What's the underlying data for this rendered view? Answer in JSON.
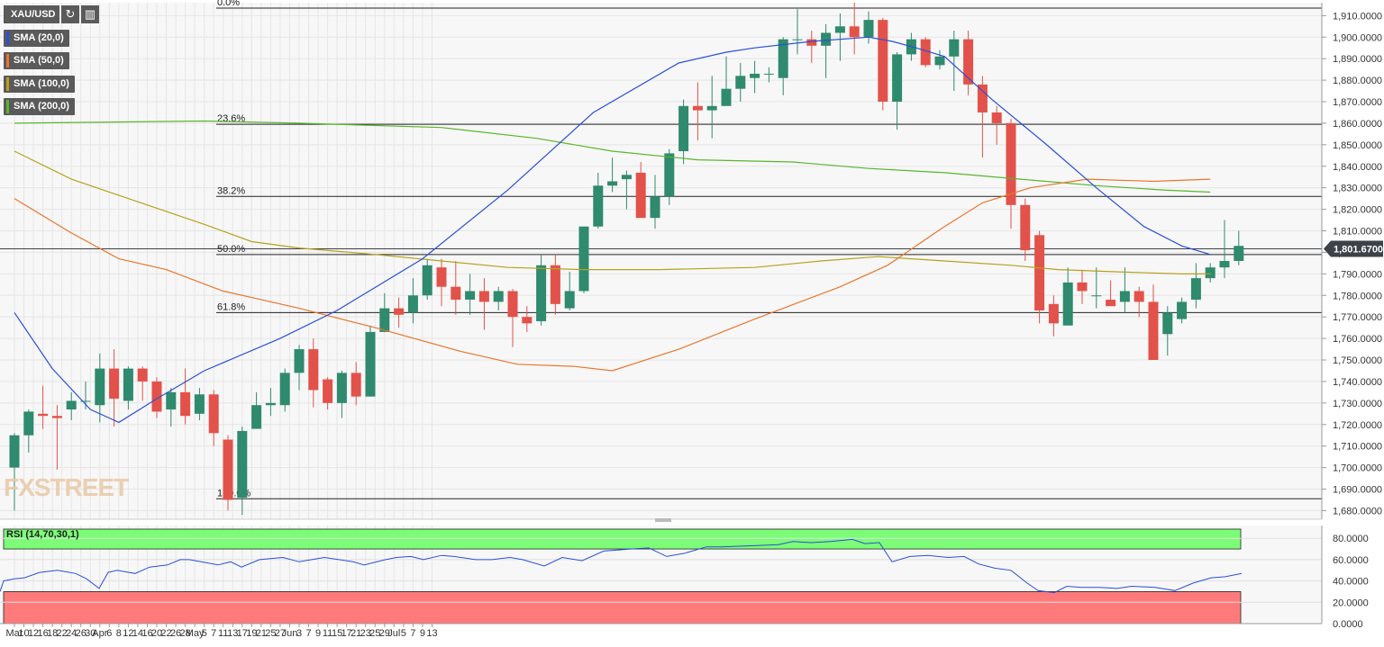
{
  "toolbar": {
    "symbol": "XAU/USD"
  },
  "chart_data": {
    "type": "candlestick",
    "symbol": "XAU/USD",
    "legend": [
      "SMA (20,0)",
      "SMA (50,0)",
      "SMA (100,0)",
      "SMA (200,0)"
    ],
    "ylim": [
      1676,
      1916
    ],
    "y_ticks": [
      "1,680.0000",
      "1,690.0000",
      "1,700.0000",
      "1,710.0000",
      "1,720.0000",
      "1,730.0000",
      "1,740.0000",
      "1,750.0000",
      "1,760.0000",
      "1,770.0000",
      "1,780.0000",
      "1,790.0000",
      "1,800.0000",
      "1,810.0000",
      "1,820.0000",
      "1,830.0000",
      "1,840.0000",
      "1,850.0000",
      "1,860.0000",
      "1,870.0000",
      "1,880.0000",
      "1,890.0000",
      "1,900.0000",
      "1,910.0000"
    ],
    "y_tick_values": [
      1680,
      1690,
      1700,
      1710,
      1720,
      1730,
      1740,
      1750,
      1760,
      1770,
      1780,
      1790,
      1800,
      1810,
      1820,
      1830,
      1840,
      1850,
      1860,
      1870,
      1880,
      1890,
      1900,
      1910
    ],
    "x_ticks": [
      "Mar",
      "10",
      "12",
      "16",
      "18",
      "22",
      "24",
      "26",
      "30",
      "Apr",
      "6",
      "8",
      "12",
      "14",
      "16",
      "20",
      "22",
      "26",
      "28",
      "May",
      "5",
      "7",
      "11",
      "13",
      "17",
      "19",
      "21",
      "25",
      "27",
      "Jun",
      "3",
      "7",
      "9",
      "11",
      "15",
      "17",
      "21",
      "23",
      "25",
      "29",
      "Jul",
      "5",
      "7",
      "9",
      "13"
    ],
    "x_tick_index": [
      0,
      2,
      4,
      6,
      8,
      10,
      12,
      14,
      16,
      18,
      20,
      22,
      24,
      26,
      28,
      30,
      32,
      34,
      36,
      38,
      40,
      42,
      44,
      46,
      48,
      50,
      52,
      54,
      56,
      58,
      60,
      62,
      64,
      66,
      68,
      70,
      72,
      74,
      76,
      78,
      80,
      82,
      84,
      86,
      88
    ],
    "last_price": {
      "label": "1,801.6700",
      "value": 1801.67
    },
    "fibonacci": [
      {
        "label": "0.0%",
        "value": 1913.5
      },
      {
        "label": "23.6%",
        "value": 1859.5
      },
      {
        "label": "38.2%",
        "value": 1826
      },
      {
        "label": "50.0%",
        "value": 1799
      },
      {
        "label": "61.8%",
        "value": 1772
      },
      {
        "label": "100.0%",
        "value": 1685.5
      }
    ],
    "candles": [
      [
        1700,
        1715,
        1680,
        1716
      ],
      [
        1715,
        1726,
        1707,
        1727
      ],
      [
        1725,
        1724,
        1718,
        1738
      ],
      [
        1724,
        1723,
        1699,
        1729
      ],
      [
        1727,
        1731,
        1722,
        1735
      ],
      [
        1731,
        1731,
        1727,
        1740
      ],
      [
        1729,
        1746,
        1721,
        1753
      ],
      [
        1746,
        1732,
        1719,
        1755
      ],
      [
        1731,
        1746,
        1727,
        1747
      ],
      [
        1746,
        1740,
        1731,
        1747
      ],
      [
        1740,
        1726,
        1723,
        1742
      ],
      [
        1727,
        1735,
        1719,
        1737
      ],
      [
        1735,
        1724,
        1720,
        1746
      ],
      [
        1725,
        1734,
        1722,
        1737
      ],
      [
        1734,
        1716,
        1710,
        1736
      ],
      [
        1713,
        1685,
        1680,
        1715
      ],
      [
        1686,
        1717,
        1678,
        1719
      ],
      [
        1718,
        1729,
        1718,
        1735
      ],
      [
        1729,
        1730,
        1724,
        1737
      ],
      [
        1729,
        1744,
        1726,
        1746
      ],
      [
        1744,
        1755,
        1736,
        1757
      ],
      [
        1755,
        1736,
        1728,
        1760
      ],
      [
        1741,
        1730,
        1727,
        1742
      ],
      [
        1730,
        1744,
        1723,
        1745
      ],
      [
        1744,
        1733,
        1729,
        1749
      ],
      [
        1733,
        1763,
        1733,
        1766
      ],
      [
        1763,
        1774,
        1763,
        1781
      ],
      [
        1774,
        1771,
        1765,
        1779
      ],
      [
        1772,
        1780,
        1767,
        1788
      ],
      [
        1780,
        1794,
        1778,
        1797
      ],
      [
        1793,
        1784,
        1775,
        1797
      ],
      [
        1784,
        1778,
        1771,
        1796
      ],
      [
        1778,
        1782,
        1771,
        1790
      ],
      [
        1782,
        1777,
        1764,
        1788
      ],
      [
        1777,
        1782,
        1773,
        1784
      ],
      [
        1782,
        1770,
        1756,
        1783
      ],
      [
        1770,
        1767,
        1763,
        1775
      ],
      [
        1768,
        1794,
        1766,
        1799
      ],
      [
        1794,
        1776,
        1771,
        1799
      ],
      [
        1774,
        1782,
        1773,
        1791
      ],
      [
        1782,
        1812,
        1781,
        1812
      ],
      [
        1812,
        1831,
        1811,
        1837
      ],
      [
        1831,
        1833,
        1828,
        1844
      ],
      [
        1834,
        1836,
        1820,
        1838
      ],
      [
        1837,
        1816,
        1817,
        1842
      ],
      [
        1816,
        1826,
        1811,
        1836
      ],
      [
        1826,
        1846,
        1822,
        1848
      ],
      [
        1847,
        1868,
        1841,
        1871
      ],
      [
        1868,
        1866,
        1852,
        1879
      ],
      [
        1866,
        1868,
        1853,
        1882
      ],
      [
        1868,
        1876,
        1870,
        1891
      ],
      [
        1876,
        1882,
        1870,
        1888
      ],
      [
        1881,
        1883,
        1874,
        1889
      ],
      [
        1883,
        1883,
        1879,
        1886
      ],
      [
        1881,
        1899,
        1873,
        1900
      ],
      [
        1899,
        1899,
        1892,
        1913
      ],
      [
        1899,
        1896,
        1888,
        1903
      ],
      [
        1896,
        1902,
        1881,
        1906
      ],
      [
        1902,
        1905,
        1889,
        1911
      ],
      [
        1905,
        1900,
        1892,
        1916
      ],
      [
        1900,
        1908,
        1897,
        1912
      ],
      [
        1908,
        1870,
        1866,
        1909
      ],
      [
        1870,
        1892,
        1857,
        1893
      ],
      [
        1892,
        1899,
        1889,
        1902
      ],
      [
        1899,
        1887,
        1886,
        1900
      ],
      [
        1887,
        1891,
        1885,
        1894
      ],
      [
        1891,
        1899,
        1875,
        1903
      ],
      [
        1899,
        1878,
        1873,
        1903
      ],
      [
        1878,
        1865,
        1844,
        1882
      ],
      [
        1865,
        1860,
        1850,
        1868
      ],
      [
        1860,
        1822,
        1811,
        1862
      ],
      [
        1822,
        1801,
        1796,
        1825
      ],
      [
        1808,
        1773,
        1767,
        1810
      ],
      [
        1776,
        1767,
        1761,
        1780
      ],
      [
        1766,
        1786,
        1768,
        1793
      ],
      [
        1786,
        1782,
        1776,
        1792
      ],
      [
        1780,
        1780,
        1774,
        1793
      ],
      [
        1778,
        1775,
        1775,
        1787
      ],
      [
        1777,
        1782,
        1772,
        1793
      ],
      [
        1782,
        1777,
        1770,
        1784
      ],
      [
        1777,
        1750,
        1750,
        1785
      ],
      [
        1762,
        1772,
        1752,
        1775
      ],
      [
        1769,
        1777,
        1767,
        1779
      ],
      [
        1778,
        1788,
        1774,
        1795
      ],
      [
        1788,
        1793,
        1786,
        1795
      ],
      [
        1793,
        1796,
        1788,
        1815
      ],
      [
        1796,
        1803,
        1794,
        1810
      ]
    ],
    "sma20": [
      [
        0,
        1772
      ],
      [
        8,
        1746
      ],
      [
        16,
        1727
      ],
      [
        22,
        1721
      ],
      [
        30,
        1732
      ],
      [
        40,
        1745
      ],
      [
        56,
        1760
      ],
      [
        68,
        1773
      ],
      [
        86,
        1797
      ],
      [
        104,
        1829
      ],
      [
        122,
        1865
      ],
      [
        140,
        1888
      ],
      [
        150,
        1893
      ],
      [
        156,
        1895
      ],
      [
        168,
        1898
      ],
      [
        180,
        1900
      ],
      [
        185,
        1898
      ],
      [
        190,
        1895
      ],
      [
        196,
        1891
      ],
      [
        206,
        1871
      ],
      [
        217,
        1851
      ],
      [
        228,
        1830
      ],
      [
        238,
        1812
      ],
      [
        246,
        1803
      ],
      [
        252,
        1799
      ]
    ],
    "sma50": [
      [
        0,
        1825
      ],
      [
        12,
        1809
      ],
      [
        22,
        1797
      ],
      [
        32,
        1792
      ],
      [
        44,
        1782
      ],
      [
        60,
        1774
      ],
      [
        76,
        1765
      ],
      [
        94,
        1754
      ],
      [
        106,
        1748
      ],
      [
        118,
        1747
      ],
      [
        126,
        1745
      ],
      [
        140,
        1755
      ],
      [
        156,
        1769
      ],
      [
        174,
        1784
      ],
      [
        184,
        1794
      ],
      [
        196,
        1812
      ],
      [
        204,
        1823
      ],
      [
        214,
        1830
      ],
      [
        226,
        1834
      ],
      [
        240,
        1833
      ],
      [
        252,
        1834
      ]
    ],
    "sma100": [
      [
        0,
        1847
      ],
      [
        12,
        1834
      ],
      [
        28,
        1822
      ],
      [
        40,
        1813
      ],
      [
        50,
        1805
      ],
      [
        60,
        1802
      ],
      [
        76,
        1799
      ],
      [
        90,
        1796
      ],
      [
        104,
        1793
      ],
      [
        120,
        1792
      ],
      [
        136,
        1792
      ],
      [
        156,
        1793
      ],
      [
        170,
        1796
      ],
      [
        182,
        1798
      ],
      [
        196,
        1796
      ],
      [
        210,
        1794
      ],
      [
        220,
        1792
      ],
      [
        232,
        1791
      ],
      [
        246,
        1790
      ],
      [
        252,
        1790
      ]
    ],
    "sma200": [
      [
        0,
        1860
      ],
      [
        40,
        1861
      ],
      [
        60,
        1860
      ],
      [
        90,
        1858
      ],
      [
        110,
        1853
      ],
      [
        126,
        1847
      ],
      [
        144,
        1843
      ],
      [
        164,
        1842
      ],
      [
        180,
        1839
      ],
      [
        196,
        1837
      ],
      [
        212,
        1834
      ],
      [
        228,
        1831
      ],
      [
        242,
        1829
      ],
      [
        252,
        1828
      ]
    ],
    "rsi": {
      "label": "RSI (14,70,30,1)",
      "ylim": [
        0,
        92
      ],
      "y_ticks": [
        "0.0000",
        "20.0000",
        "40.0000",
        "60.0000",
        "80.0000"
      ],
      "y_tick_values": [
        0,
        20,
        40,
        60,
        80
      ],
      "overbought": 70,
      "oversold": 30,
      "values": [
        [
          0,
          30
        ],
        [
          4,
          40
        ],
        [
          16,
          42
        ],
        [
          27,
          43
        ],
        [
          44,
          48
        ],
        [
          64,
          50
        ],
        [
          84,
          47
        ],
        [
          96,
          42
        ],
        [
          110,
          33
        ],
        [
          120,
          48
        ],
        [
          130,
          50
        ],
        [
          150,
          47
        ],
        [
          166,
          53
        ],
        [
          186,
          55
        ],
        [
          200,
          60
        ],
        [
          210,
          60
        ],
        [
          230,
          57
        ],
        [
          242,
          55
        ],
        [
          256,
          58
        ],
        [
          268,
          53
        ],
        [
          288,
          60
        ],
        [
          314,
          62
        ],
        [
          332,
          58
        ],
        [
          360,
          62
        ],
        [
          392,
          58
        ],
        [
          404,
          55
        ],
        [
          428,
          60
        ],
        [
          440,
          62
        ],
        [
          456,
          63
        ],
        [
          470,
          60
        ],
        [
          490,
          64
        ],
        [
          504,
          63
        ],
        [
          528,
          60
        ],
        [
          546,
          60
        ],
        [
          566,
          62
        ],
        [
          580,
          60
        ],
        [
          604,
          54
        ],
        [
          624,
          62
        ],
        [
          646,
          59
        ],
        [
          670,
          68
        ],
        [
          700,
          70
        ],
        [
          720,
          71
        ],
        [
          740,
          63
        ],
        [
          760,
          66
        ],
        [
          784,
          72
        ],
        [
          800,
          72
        ],
        [
          834,
          73
        ],
        [
          864,
          74
        ],
        [
          880,
          77
        ],
        [
          900,
          76
        ],
        [
          922,
          77
        ],
        [
          946,
          79
        ],
        [
          960,
          75
        ],
        [
          976,
          76
        ],
        [
          990,
          58
        ],
        [
          1010,
          63
        ],
        [
          1030,
          64
        ],
        [
          1052,
          62
        ],
        [
          1070,
          63
        ],
        [
          1086,
          56
        ],
        [
          1104,
          52
        ],
        [
          1122,
          50
        ],
        [
          1140,
          38
        ],
        [
          1152,
          31
        ],
        [
          1170,
          29
        ],
        [
          1184,
          35
        ],
        [
          1200,
          34
        ],
        [
          1220,
          34
        ],
        [
          1240,
          33
        ],
        [
          1256,
          35
        ],
        [
          1282,
          34
        ],
        [
          1304,
          31
        ],
        [
          1324,
          38
        ],
        [
          1344,
          43
        ],
        [
          1360,
          44
        ],
        [
          1378,
          47
        ]
      ]
    },
    "colors": {
      "bull": "#2f8a6e",
      "bear": "#e2524a",
      "sma20": "#2a4fd6",
      "sma50": "#e8762c",
      "sma100": "#b5a21c",
      "sma200": "#59b52d",
      "overbought_zone": "#7cfc77",
      "oversold_zone": "#ff7b7b",
      "rsi_line": "#2a4fd6",
      "last_price_badge": "#3d4148"
    }
  }
}
